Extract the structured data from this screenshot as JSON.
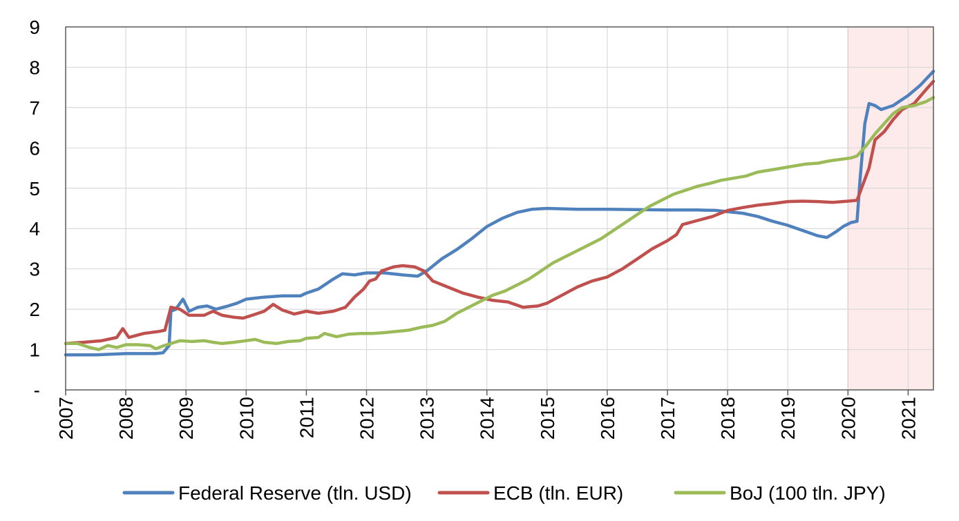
{
  "chart_data": {
    "type": "line",
    "title": "",
    "xlabel": "",
    "ylabel": "",
    "xlim": [
      2007.0,
      2021.42
    ],
    "ylim": [
      0,
      9
    ],
    "y_ticks": [
      {
        "value": 0,
        "label": "-"
      },
      {
        "value": 1,
        "label": "1"
      },
      {
        "value": 2,
        "label": "2"
      },
      {
        "value": 3,
        "label": "3"
      },
      {
        "value": 4,
        "label": "4"
      },
      {
        "value": 5,
        "label": "5"
      },
      {
        "value": 6,
        "label": "6"
      },
      {
        "value": 7,
        "label": "7"
      },
      {
        "value": 8,
        "label": "8"
      },
      {
        "value": 9,
        "label": "9"
      }
    ],
    "x_ticks": [
      "2007",
      "2008",
      "2009",
      "2010",
      "2011",
      "2012",
      "2013",
      "2014",
      "2015",
      "2016",
      "2017",
      "2018",
      "2019",
      "2020",
      "2021"
    ],
    "grid": true,
    "legend_position": "bottom",
    "shaded_region": {
      "from": 2020.0,
      "to": 2021.42,
      "color": "#fdeaea"
    },
    "series": [
      {
        "name": "Federal Reserve (tln. USD)",
        "color": "#4f81bd",
        "points": [
          [
            2007.0,
            0.87
          ],
          [
            2007.5,
            0.87
          ],
          [
            2008.0,
            0.9
          ],
          [
            2008.5,
            0.9
          ],
          [
            2008.62,
            0.92
          ],
          [
            2008.72,
            1.1
          ],
          [
            2008.75,
            1.95
          ],
          [
            2008.83,
            2.0
          ],
          [
            2008.95,
            2.25
          ],
          [
            2009.05,
            1.95
          ],
          [
            2009.2,
            2.05
          ],
          [
            2009.35,
            2.08
          ],
          [
            2009.5,
            2.0
          ],
          [
            2009.7,
            2.08
          ],
          [
            2009.85,
            2.15
          ],
          [
            2010.0,
            2.25
          ],
          [
            2010.3,
            2.3
          ],
          [
            2010.6,
            2.33
          ],
          [
            2010.9,
            2.33
          ],
          [
            2011.0,
            2.4
          ],
          [
            2011.2,
            2.5
          ],
          [
            2011.45,
            2.75
          ],
          [
            2011.6,
            2.88
          ],
          [
            2011.8,
            2.85
          ],
          [
            2012.0,
            2.9
          ],
          [
            2012.3,
            2.9
          ],
          [
            2012.6,
            2.85
          ],
          [
            2012.85,
            2.82
          ],
          [
            2013.0,
            2.95
          ],
          [
            2013.25,
            3.25
          ],
          [
            2013.5,
            3.48
          ],
          [
            2013.75,
            3.75
          ],
          [
            2014.0,
            4.05
          ],
          [
            2014.25,
            4.25
          ],
          [
            2014.5,
            4.4
          ],
          [
            2014.75,
            4.48
          ],
          [
            2015.0,
            4.5
          ],
          [
            2015.5,
            4.48
          ],
          [
            2016.0,
            4.48
          ],
          [
            2016.5,
            4.47
          ],
          [
            2017.0,
            4.46
          ],
          [
            2017.5,
            4.46
          ],
          [
            2017.8,
            4.45
          ],
          [
            2018.0,
            4.42
          ],
          [
            2018.25,
            4.38
          ],
          [
            2018.5,
            4.3
          ],
          [
            2018.75,
            4.18
          ],
          [
            2019.0,
            4.08
          ],
          [
            2019.25,
            3.95
          ],
          [
            2019.5,
            3.82
          ],
          [
            2019.65,
            3.78
          ],
          [
            2019.8,
            3.92
          ],
          [
            2019.92,
            4.05
          ],
          [
            2020.05,
            4.15
          ],
          [
            2020.15,
            4.18
          ],
          [
            2020.2,
            5.2
          ],
          [
            2020.28,
            6.6
          ],
          [
            2020.35,
            7.1
          ],
          [
            2020.45,
            7.05
          ],
          [
            2020.55,
            6.95
          ],
          [
            2020.75,
            7.05
          ],
          [
            2021.0,
            7.3
          ],
          [
            2021.2,
            7.55
          ],
          [
            2021.42,
            7.9
          ]
        ]
      },
      {
        "name": "ECB (tln. EUR)",
        "color": "#c0504d",
        "points": [
          [
            2007.0,
            1.15
          ],
          [
            2007.3,
            1.18
          ],
          [
            2007.6,
            1.22
          ],
          [
            2007.85,
            1.3
          ],
          [
            2007.95,
            1.52
          ],
          [
            2008.05,
            1.3
          ],
          [
            2008.3,
            1.4
          ],
          [
            2008.55,
            1.45
          ],
          [
            2008.65,
            1.48
          ],
          [
            2008.75,
            2.05
          ],
          [
            2008.9,
            2.0
          ],
          [
            2009.05,
            1.85
          ],
          [
            2009.3,
            1.85
          ],
          [
            2009.45,
            1.95
          ],
          [
            2009.6,
            1.85
          ],
          [
            2009.8,
            1.8
          ],
          [
            2009.95,
            1.78
          ],
          [
            2010.1,
            1.85
          ],
          [
            2010.3,
            1.95
          ],
          [
            2010.45,
            2.12
          ],
          [
            2010.6,
            1.98
          ],
          [
            2010.8,
            1.88
          ],
          [
            2011.0,
            1.95
          ],
          [
            2011.2,
            1.9
          ],
          [
            2011.45,
            1.95
          ],
          [
            2011.65,
            2.05
          ],
          [
            2011.8,
            2.3
          ],
          [
            2011.95,
            2.5
          ],
          [
            2012.05,
            2.7
          ],
          [
            2012.15,
            2.75
          ],
          [
            2012.25,
            2.95
          ],
          [
            2012.45,
            3.05
          ],
          [
            2012.6,
            3.08
          ],
          [
            2012.8,
            3.05
          ],
          [
            2012.95,
            2.95
          ],
          [
            2013.1,
            2.7
          ],
          [
            2013.35,
            2.55
          ],
          [
            2013.6,
            2.4
          ],
          [
            2013.85,
            2.3
          ],
          [
            2014.1,
            2.22
          ],
          [
            2014.35,
            2.18
          ],
          [
            2014.6,
            2.05
          ],
          [
            2014.85,
            2.08
          ],
          [
            2015.0,
            2.15
          ],
          [
            2015.25,
            2.35
          ],
          [
            2015.5,
            2.55
          ],
          [
            2015.75,
            2.7
          ],
          [
            2016.0,
            2.8
          ],
          [
            2016.25,
            3.0
          ],
          [
            2016.5,
            3.25
          ],
          [
            2016.75,
            3.5
          ],
          [
            2017.0,
            3.7
          ],
          [
            2017.15,
            3.85
          ],
          [
            2017.25,
            4.1
          ],
          [
            2017.5,
            4.2
          ],
          [
            2017.75,
            4.3
          ],
          [
            2018.0,
            4.45
          ],
          [
            2018.25,
            4.52
          ],
          [
            2018.5,
            4.58
          ],
          [
            2018.75,
            4.62
          ],
          [
            2019.0,
            4.67
          ],
          [
            2019.25,
            4.68
          ],
          [
            2019.5,
            4.67
          ],
          [
            2019.75,
            4.65
          ],
          [
            2020.0,
            4.68
          ],
          [
            2020.15,
            4.7
          ],
          [
            2020.25,
            5.1
          ],
          [
            2020.35,
            5.5
          ],
          [
            2020.45,
            6.2
          ],
          [
            2020.6,
            6.4
          ],
          [
            2020.75,
            6.7
          ],
          [
            2020.9,
            6.95
          ],
          [
            2021.1,
            7.1
          ],
          [
            2021.3,
            7.45
          ],
          [
            2021.42,
            7.65
          ]
        ]
      },
      {
        "name": "BoJ (100 tln. JPY)",
        "color": "#9bbb59",
        "points": [
          [
            2007.0,
            1.15
          ],
          [
            2007.2,
            1.15
          ],
          [
            2007.4,
            1.05
          ],
          [
            2007.55,
            1.0
          ],
          [
            2007.7,
            1.1
          ],
          [
            2007.85,
            1.05
          ],
          [
            2008.0,
            1.12
          ],
          [
            2008.2,
            1.12
          ],
          [
            2008.4,
            1.1
          ],
          [
            2008.5,
            1.02
          ],
          [
            2008.6,
            1.08
          ],
          [
            2008.75,
            1.15
          ],
          [
            2008.9,
            1.22
          ],
          [
            2009.1,
            1.2
          ],
          [
            2009.3,
            1.22
          ],
          [
            2009.45,
            1.18
          ],
          [
            2009.6,
            1.15
          ],
          [
            2009.8,
            1.18
          ],
          [
            2010.0,
            1.22
          ],
          [
            2010.15,
            1.25
          ],
          [
            2010.3,
            1.18
          ],
          [
            2010.5,
            1.15
          ],
          [
            2010.7,
            1.2
          ],
          [
            2010.9,
            1.22
          ],
          [
            2011.0,
            1.28
          ],
          [
            2011.2,
            1.3
          ],
          [
            2011.3,
            1.4
          ],
          [
            2011.5,
            1.32
          ],
          [
            2011.7,
            1.38
          ],
          [
            2011.9,
            1.4
          ],
          [
            2012.1,
            1.4
          ],
          [
            2012.3,
            1.42
          ],
          [
            2012.5,
            1.45
          ],
          [
            2012.7,
            1.48
          ],
          [
            2012.9,
            1.55
          ],
          [
            2013.1,
            1.6
          ],
          [
            2013.3,
            1.7
          ],
          [
            2013.5,
            1.9
          ],
          [
            2013.7,
            2.05
          ],
          [
            2013.9,
            2.2
          ],
          [
            2014.1,
            2.35
          ],
          [
            2014.3,
            2.45
          ],
          [
            2014.5,
            2.6
          ],
          [
            2014.7,
            2.75
          ],
          [
            2014.9,
            2.95
          ],
          [
            2015.1,
            3.15
          ],
          [
            2015.3,
            3.3
          ],
          [
            2015.5,
            3.45
          ],
          [
            2015.7,
            3.6
          ],
          [
            2015.9,
            3.75
          ],
          [
            2016.1,
            3.95
          ],
          [
            2016.3,
            4.15
          ],
          [
            2016.5,
            4.35
          ],
          [
            2016.7,
            4.55
          ],
          [
            2016.9,
            4.7
          ],
          [
            2017.1,
            4.85
          ],
          [
            2017.3,
            4.95
          ],
          [
            2017.5,
            5.05
          ],
          [
            2017.7,
            5.12
          ],
          [
            2017.9,
            5.2
          ],
          [
            2018.1,
            5.25
          ],
          [
            2018.3,
            5.3
          ],
          [
            2018.5,
            5.4
          ],
          [
            2018.7,
            5.45
          ],
          [
            2018.9,
            5.5
          ],
          [
            2019.1,
            5.55
          ],
          [
            2019.3,
            5.6
          ],
          [
            2019.5,
            5.62
          ],
          [
            2019.7,
            5.68
          ],
          [
            2019.9,
            5.72
          ],
          [
            2020.05,
            5.75
          ],
          [
            2020.15,
            5.8
          ],
          [
            2020.3,
            6.05
          ],
          [
            2020.45,
            6.35
          ],
          [
            2020.6,
            6.6
          ],
          [
            2020.75,
            6.85
          ],
          [
            2020.9,
            7.0
          ],
          [
            2021.1,
            7.05
          ],
          [
            2021.3,
            7.15
          ],
          [
            2021.42,
            7.25
          ]
        ]
      }
    ]
  }
}
